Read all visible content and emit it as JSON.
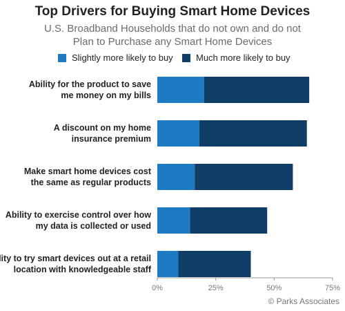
{
  "title": "Top Drivers for Buying Smart Home Devices",
  "subtitle_line1": "U.S. Broadband Households that do not own and do not",
  "subtitle_line2": "Plan to Purchase any Smart Home Devices",
  "copyright": "© Parks Associates",
  "colors": {
    "slightly": "#1f7ac4",
    "much": "#0e3d66"
  },
  "chart_data": {
    "type": "bar",
    "orientation": "horizontal",
    "stacked": true,
    "categories": [
      [
        "Ability for the product to save",
        "me money on my bills"
      ],
      [
        "A discount on my home",
        "insurance premium"
      ],
      [
        "Make smart home devices cost",
        "the same as regular products"
      ],
      [
        "Ability to exercise control over how",
        "my data is collected or used"
      ],
      [
        "Ability to try smart devices out at a retail",
        "location with knowledgeable staff"
      ]
    ],
    "series": [
      {
        "name": "Slightly more likely to buy",
        "values": [
          20,
          18,
          16,
          14,
          9
        ]
      },
      {
        "name": "Much more likely to buy",
        "values": [
          45,
          46,
          42,
          33,
          31
        ]
      }
    ],
    "xlim": [
      0,
      75
    ],
    "xticks": [
      "0%",
      "25%",
      "50%",
      "75%"
    ],
    "grid": false,
    "legend_position": "top"
  }
}
